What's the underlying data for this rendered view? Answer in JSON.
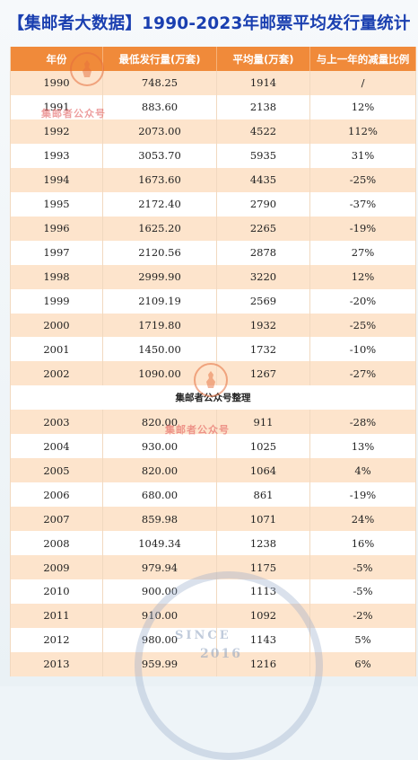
{
  "title": "【集邮者大数据】1990-2023年邮票平均发行量统计",
  "header": [
    "年份",
    "最低发行量(万套)",
    "平均量(万套)",
    "与上一年的减量比例"
  ],
  "rows_a": [
    [
      "1990",
      "748.25",
      "1914",
      "/"
    ],
    [
      "1991",
      "883.60",
      "2138",
      "12%"
    ],
    [
      "1992",
      "2073.00",
      "4522",
      "112%"
    ],
    [
      "1993",
      "3053.70",
      "5935",
      "31%"
    ],
    [
      "1994",
      "1673.60",
      "4435",
      "-25%"
    ],
    [
      "1995",
      "2172.40",
      "2790",
      "-37%"
    ],
    [
      "1996",
      "1625.20",
      "2265",
      "-19%"
    ],
    [
      "1997",
      "2120.56",
      "2878",
      "27%"
    ],
    [
      "1998",
      "2999.90",
      "3220",
      "12%"
    ],
    [
      "1999",
      "2109.19",
      "2569",
      "-20%"
    ],
    [
      "2000",
      "1719.80",
      "1932",
      "-25%"
    ],
    [
      "2001",
      "1450.00",
      "1732",
      "-10%"
    ],
    [
      "2002",
      "1090.00",
      "1267",
      "-27%"
    ]
  ],
  "note": "集邮者公众号整理",
  "rows_b": [
    [
      "2003",
      "820.00",
      "911",
      "-28%"
    ],
    [
      "2004",
      "930.00",
      "1025",
      "13%"
    ],
    [
      "2005",
      "820.00",
      "1064",
      "4%"
    ],
    [
      "2006",
      "680.00",
      "861",
      "-19%"
    ],
    [
      "2007",
      "859.98",
      "1071",
      "24%"
    ],
    [
      "2008",
      "1049.34",
      "1238",
      "16%"
    ],
    [
      "2009",
      "979.94",
      "1175",
      "-5%"
    ],
    [
      "2010",
      "900.00",
      "1113",
      "-5%"
    ],
    [
      "2011",
      "910.00",
      "1092",
      "-2%"
    ],
    [
      "2012",
      "980.00",
      "1143",
      "5%"
    ],
    [
      "2013",
      "959.99",
      "1216",
      "6%"
    ]
  ],
  "watermarks": {
    "top": "集邮者公众号",
    "middle": "集邮者公众号",
    "seal_text": "SINCE",
    "seal_year": "2016"
  }
}
